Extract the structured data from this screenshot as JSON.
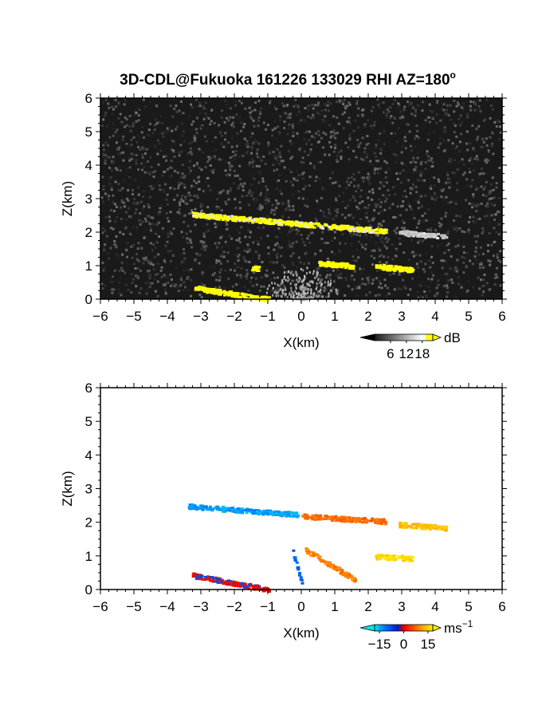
{
  "chart_data": [
    {
      "type": "heatmap",
      "title": "3D-CDL@Fukuoka 161226 133029 RHI AZ=180",
      "title_superscript": "o",
      "xlabel": "X(km)",
      "ylabel": "Z(km)",
      "xlim": [
        -6,
        6
      ],
      "ylim": [
        0,
        6
      ],
      "x_ticks": [
        "-6",
        "-5",
        "-4",
        "-3",
        "-2",
        "-1",
        "0",
        "1",
        "2",
        "3",
        "4",
        "5",
        "6"
      ],
      "y_ticks": [
        "0",
        "1",
        "2",
        "3",
        "4",
        "5",
        "6"
      ],
      "background": "#1a1a1a",
      "colorbar": {
        "unit": "dB",
        "ticks": [
          "6",
          "12",
          "18"
        ],
        "range": [
          0,
          22
        ]
      },
      "features": [
        {
          "x": [
            -3.3,
            2.5
          ],
          "z": [
            2.55,
            2.05
          ],
          "value": 20
        },
        {
          "x": [
            2.9,
            4.3
          ],
          "z": [
            2.0,
            1.9
          ],
          "value": 14
        },
        {
          "x": [
            -1.5,
            -1.3
          ],
          "z": [
            0.95,
            0.95
          ],
          "value": 22
        },
        {
          "x": [
            0.5,
            1.6
          ],
          "z": [
            1.1,
            1.0
          ],
          "value": 22
        },
        {
          "x": [
            2.2,
            3.3
          ],
          "z": [
            1.0,
            0.9
          ],
          "value": 22
        },
        {
          "x": [
            -3.2,
            -1.0
          ],
          "z": [
            0.35,
            0.02
          ],
          "value": 22
        }
      ]
    },
    {
      "type": "heatmap",
      "xlabel": "X(km)",
      "ylabel": "Z(km)",
      "xlim": [
        -6,
        6
      ],
      "ylim": [
        0,
        6
      ],
      "x_ticks": [
        "-6",
        "-5",
        "-4",
        "-3",
        "-2",
        "-1",
        "0",
        "1",
        "2",
        "3",
        "4",
        "5",
        "6"
      ],
      "y_ticks": [
        "0",
        "1",
        "2",
        "3",
        "4",
        "5",
        "6"
      ],
      "colorbar": {
        "unit": "ms",
        "unit_superscript": "−1",
        "ticks": [
          "−15",
          "0",
          "15"
        ],
        "range": [
          -18,
          18
        ]
      },
      "features": [
        {
          "x": [
            -3.4,
            -0.1
          ],
          "z": [
            2.5,
            2.25
          ],
          "value": -14
        },
        {
          "x": [
            0.0,
            2.5
          ],
          "z": [
            2.2,
            2.05
          ],
          "value": 8
        },
        {
          "x": [
            2.9,
            4.3
          ],
          "z": [
            1.95,
            1.85
          ],
          "value": 14
        },
        {
          "x": [
            -0.3,
            0.0
          ],
          "z": [
            1.2,
            0.2
          ],
          "value": -10
        },
        {
          "x": [
            0.1,
            1.6
          ],
          "z": [
            1.2,
            0.3
          ],
          "value": 9
        },
        {
          "x": [
            2.2,
            3.3
          ],
          "z": [
            1.0,
            0.95
          ],
          "value": 16
        },
        {
          "x": [
            -3.3,
            -1.0
          ],
          "z": [
            0.45,
            0.02
          ],
          "value": 0
        }
      ]
    }
  ]
}
